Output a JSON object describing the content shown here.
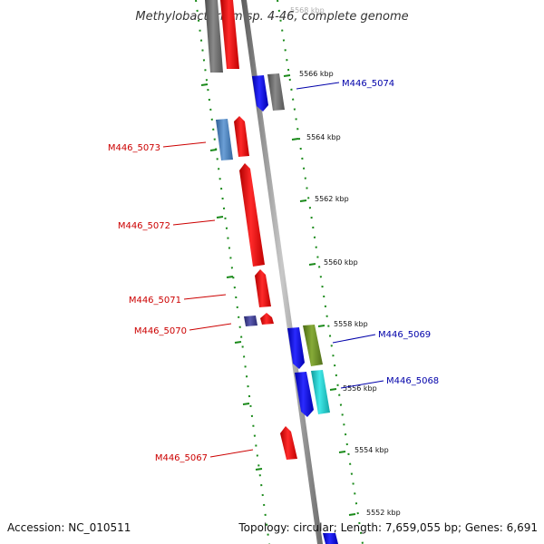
{
  "title": "Methylobacterium sp. 4-46, complete genome",
  "footer": {
    "accession": "Accession: NC_010511",
    "info": "Topology: circular; Length: 7,659,055 bp; Genes: 6,691"
  },
  "colors": {
    "forward_red": "#ff0000",
    "reverse_blue": "#0000ff",
    "gray": "#6e6e6e",
    "steel_blue": "#4f86c0",
    "olive": "#6b8e23",
    "cyan": "#20c8c8",
    "navy": "#3b3b8f",
    "tick_green": "#1a8a1a",
    "label_red": "#cc0000",
    "label_blue": "#0000aa"
  },
  "axis": {
    "unit": "kbp",
    "ticks": [
      "5568 kbp",
      "5566 kbp",
      "5564 kbp",
      "5562 kbp",
      "5560 kbp",
      "5558 kbp",
      "5556 kbp",
      "5554 kbp",
      "5552 kbp"
    ]
  },
  "gene_labels": {
    "M446_5074": "M446_5074",
    "M446_5073": "M446_5073",
    "M446_5072": "M446_5072",
    "M446_5071": "M446_5071",
    "M446_5070": "M446_5070",
    "M446_5069": "M446_5069",
    "M446_5068": "M446_5068",
    "M446_5067": "M446_5067"
  }
}
